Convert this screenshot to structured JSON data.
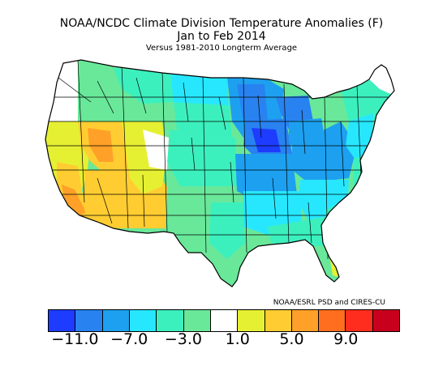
{
  "title": {
    "line1": "NOAA/NCDC Climate Division Temperature Anomalies (F)",
    "line2": "Jan to Feb 2014",
    "line3": "Versus 1981-2010 Longterm Average"
  },
  "credit": "NOAA/ESRL PSD and CIRES-CU",
  "legend": {
    "colors": [
      "#1e3cff",
      "#2882f0",
      "#1ea0f0",
      "#27e7ff",
      "#3cf0be",
      "#69e89a",
      "#ffffff",
      "#e6f032",
      "#ffcd32",
      "#ffa028",
      "#ff6e1e",
      "#ff2d1e",
      "#c8001e"
    ],
    "tick_labels": [
      "-11.0",
      "-7.0",
      "-3.0",
      "1.0",
      "5.0",
      "9.0"
    ],
    "tick_values": [
      -11,
      -7,
      -3,
      1,
      5,
      9
    ]
  }
}
